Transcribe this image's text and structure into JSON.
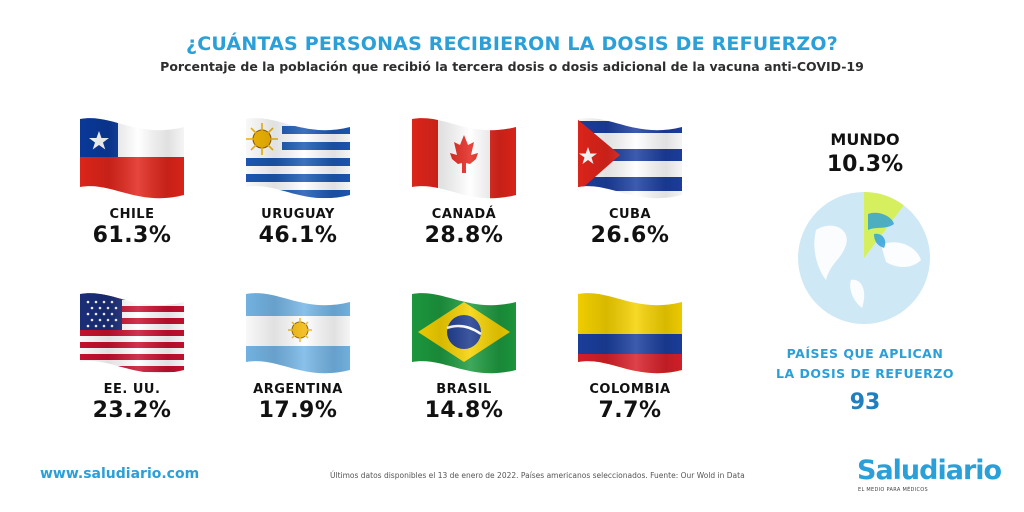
{
  "chart_data": {
    "type": "table",
    "title": "¿CUÁNTAS PERSONAS RECIBIERON LA DOSIS DE REFUERZO?",
    "subtitle": "Porcentaje de la población que recibió la tercera dosis o dosis adicional de la vacuna anti-COVID-19",
    "countries": [
      {
        "name": "CHILE",
        "value": "61.3%",
        "flag": "chile-flag"
      },
      {
        "name": "URUGUAY",
        "value": "46.1%",
        "flag": "uruguay-flag"
      },
      {
        "name": "CANADÁ",
        "value": "28.8%",
        "flag": "canada-flag"
      },
      {
        "name": "CUBA",
        "value": "26.6%",
        "flag": "cuba-flag"
      },
      {
        "name": "EE. UU.",
        "value": "23.2%",
        "flag": "usa-flag"
      },
      {
        "name": "ARGENTINA",
        "value": "17.9%",
        "flag": "argentina-flag"
      },
      {
        "name": "BRASIL",
        "value": "14.8%",
        "flag": "brazil-flag"
      },
      {
        "name": "COLOMBIA",
        "value": "7.7%",
        "flag": "colombia-flag"
      }
    ],
    "world": {
      "label": "MUNDO",
      "value": "10.3%",
      "fraction": 0.103
    },
    "booster_countries": {
      "label_line1": "PAÍSES QUE APLICAN",
      "label_line2": "LA DOSIS DE REFUERZO",
      "value": "93"
    }
  },
  "footer": {
    "website": "www.saludiario.com",
    "note": "Últimos datos disponibles el 13 de enero de 2022. Países americanos seleccionados.    Fuente: Our Wold in Data",
    "brand": "Saludiario",
    "brand_tagline": "EL MEDIO PARA MÉDICOS"
  },
  "colors": {
    "accent": "#2a9fd8",
    "globe_light": "#cfe8f5",
    "globe_slice": "#d6ef5e"
  }
}
